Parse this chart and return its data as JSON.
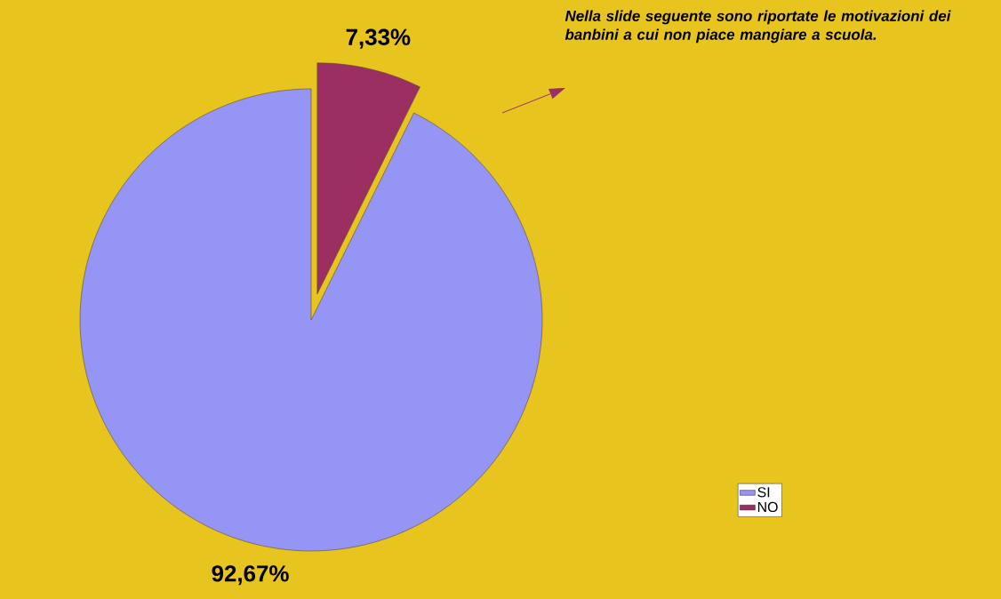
{
  "chart_data": {
    "type": "pie",
    "categories": [
      "SI",
      "NO"
    ],
    "values": [
      92.67,
      7.33
    ],
    "colors": [
      "#9595f5",
      "#9c2f62"
    ],
    "value_labels": [
      "92,67%",
      "7,33%"
    ],
    "legend": "bottom right",
    "annotations": [
      "Nella slide seguente sono riportate le motivazioni dei banbini a cui non piace mangiare a scuola."
    ]
  }
}
